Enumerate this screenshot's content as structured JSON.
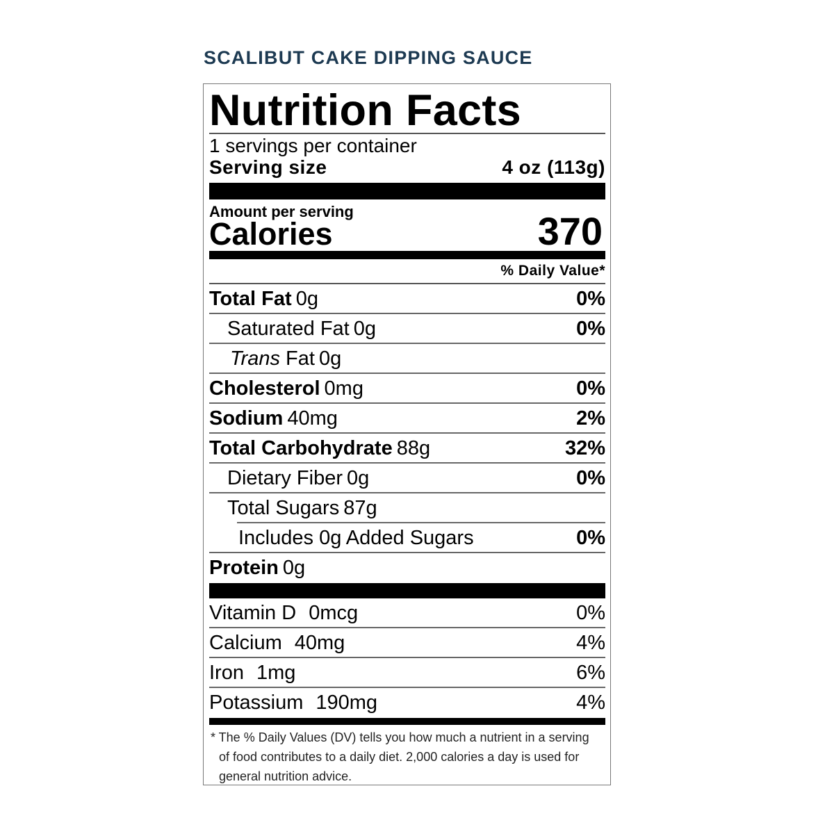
{
  "product_name": "SCALIBUT CAKE DIPPING SAUCE",
  "label": {
    "title": "Nutrition Facts",
    "servings_per_container": "1 servings per container",
    "serving_size_label": "Serving size",
    "serving_size_value": "4 oz (113g)",
    "amount_per_serving": "Amount per serving",
    "calories_label": "Calories",
    "calories_value": "370",
    "daily_value_header": "% Daily Value*",
    "nutrients": [
      {
        "name": "Total Fat",
        "amount": "0g",
        "dv": "0%"
      },
      {
        "name": "Saturated Fat",
        "amount": "0g",
        "dv": "0%"
      },
      {
        "name_italic": "Trans",
        "name": "Fat",
        "amount": "0g",
        "dv": ""
      },
      {
        "name": "Cholesterol",
        "amount": "0mg",
        "dv": "0%"
      },
      {
        "name": "Sodium",
        "amount": "40mg",
        "dv": "2%"
      },
      {
        "name": "Total Carbohydrate",
        "amount": "88g",
        "dv": "32%"
      },
      {
        "name": "Dietary Fiber",
        "amount": "0g",
        "dv": "0%"
      },
      {
        "name": "Total Sugars",
        "amount": "87g",
        "dv": ""
      },
      {
        "name": "Includes 0g Added Sugars",
        "amount": "",
        "dv": "0%"
      },
      {
        "name": "Protein",
        "amount": "0g",
        "dv": ""
      }
    ],
    "vitamins": [
      {
        "name": "Vitamin D",
        "amount": "0mcg",
        "dv": "0%"
      },
      {
        "name": "Calcium",
        "amount": "40mg",
        "dv": "4%"
      },
      {
        "name": "Iron",
        "amount": "1mg",
        "dv": "6%"
      },
      {
        "name": "Potassium",
        "amount": "190mg",
        "dv": "4%"
      }
    ],
    "footnote": "* The % Daily Values (DV) tells you how much a nutrient in a serving of food contributes to a daily diet. 2,000 calories a day is used for general nutrition advice."
  },
  "colors": {
    "product_name": "#1d3a52",
    "text": "#000000"
  }
}
